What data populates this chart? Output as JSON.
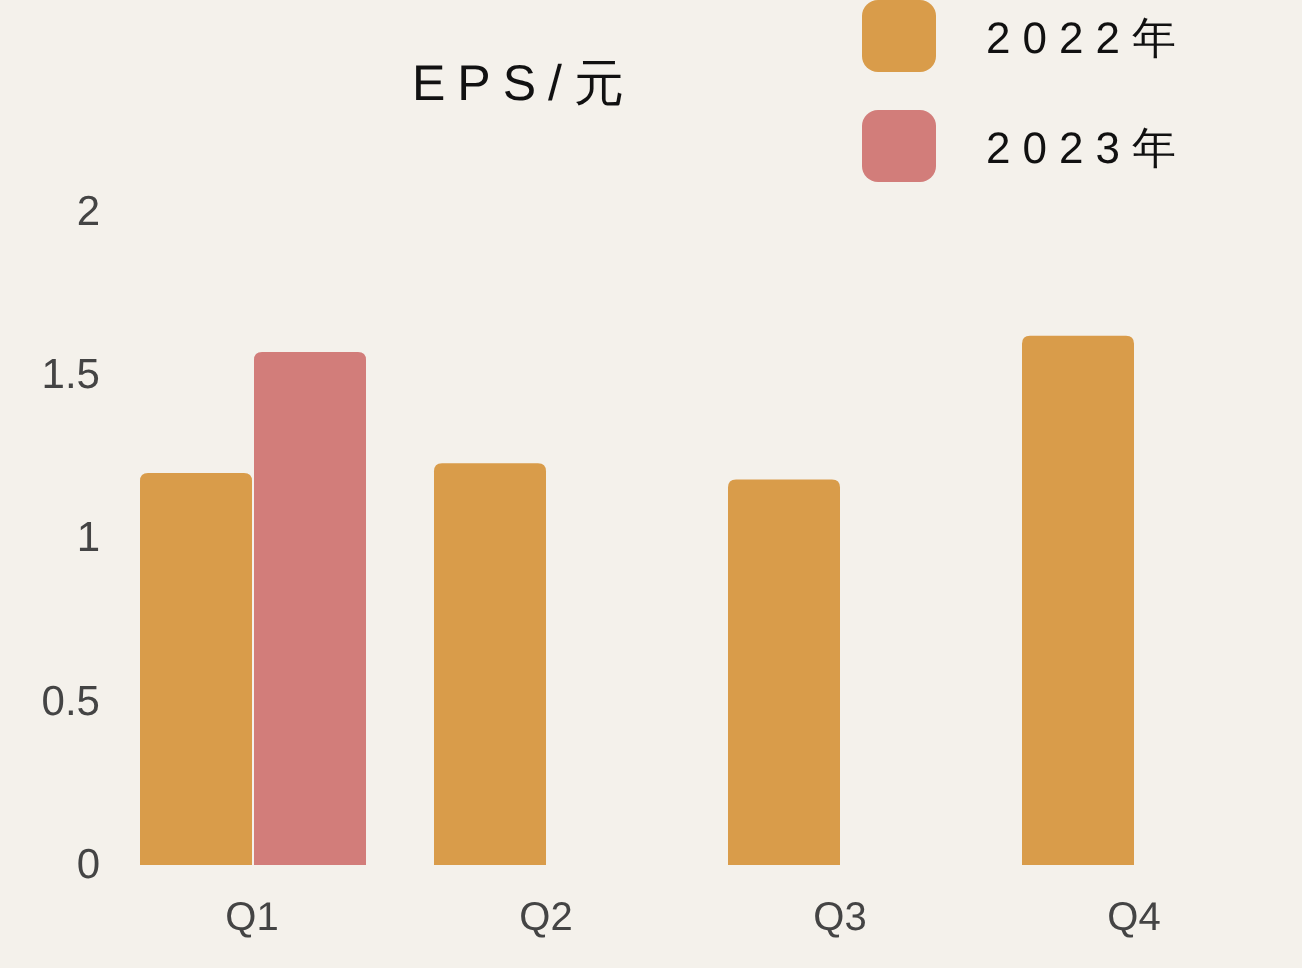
{
  "chart_data": {
    "type": "bar",
    "title": "EPS/元",
    "categories": [
      "Q1",
      "Q2",
      "Q3",
      "Q4"
    ],
    "series": [
      {
        "name": "2022年",
        "color": "#d99c4a",
        "values": [
          1.2,
          1.23,
          1.18,
          1.62
        ]
      },
      {
        "name": "2023年",
        "color": "#d27d7a",
        "values": [
          1.57,
          null,
          null,
          null
        ]
      }
    ],
    "ylim": [
      0,
      2
    ],
    "yticks": [
      0,
      0.5,
      1,
      1.5,
      2
    ],
    "grid": false,
    "legend": "top right"
  }
}
